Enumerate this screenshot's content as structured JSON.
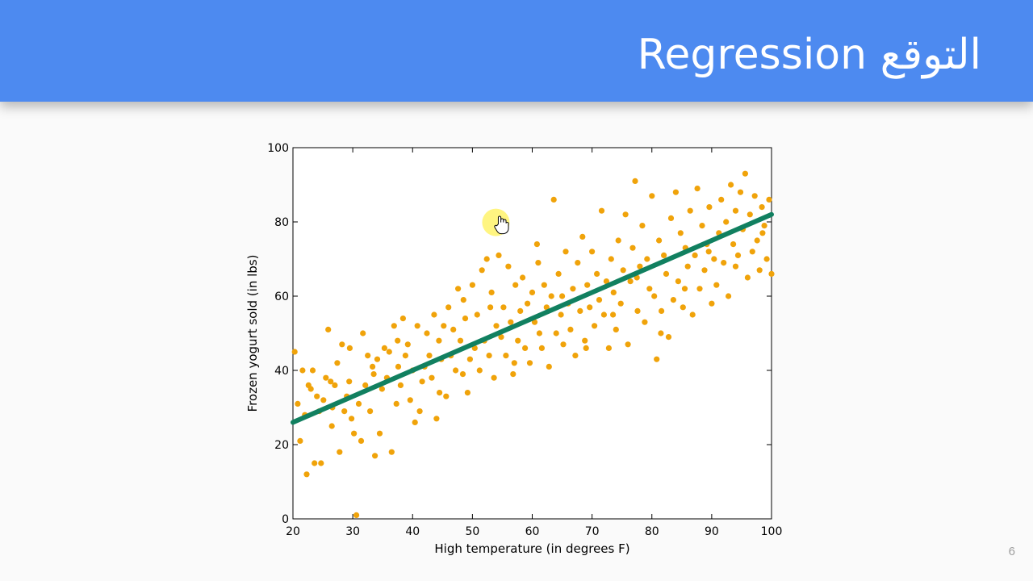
{
  "slide": {
    "title": "Regression التوقع",
    "page_number": "6"
  },
  "colors": {
    "header": "#4d8af0",
    "points": "#f0a30a",
    "line": "#118060",
    "pointer_highlight": "#fff36b"
  },
  "pointer": {
    "icon": "hand-pointer-icon",
    "x": 55,
    "y": 79
  },
  "chart_data": {
    "type": "scatter",
    "title": "",
    "xlabel": "High temperature (in degrees F)",
    "ylabel": "Frozen yogurt sold (in lbs)",
    "xlim": [
      20,
      100
    ],
    "ylim": [
      0,
      100
    ],
    "xticks": [
      20,
      30,
      40,
      50,
      60,
      70,
      80,
      90,
      100
    ],
    "yticks": [
      0,
      20,
      40,
      60,
      80,
      100
    ],
    "grid": false,
    "legend": "none",
    "regression_line": {
      "x": [
        20,
        100
      ],
      "y": [
        26,
        82
      ]
    },
    "points": [
      [
        20.3,
        45
      ],
      [
        20.8,
        31
      ],
      [
        21.2,
        21
      ],
      [
        21.6,
        40
      ],
      [
        22,
        28
      ],
      [
        22.3,
        12
      ],
      [
        22.6,
        36
      ],
      [
        23,
        35
      ],
      [
        23.3,
        40
      ],
      [
        23.6,
        15
      ],
      [
        24,
        33
      ],
      [
        24.4,
        29
      ],
      [
        24.7,
        15
      ],
      [
        25.1,
        32
      ],
      [
        25.5,
        38
      ],
      [
        25.9,
        51
      ],
      [
        26.3,
        37
      ],
      [
        26.6,
        30
      ],
      [
        27,
        36
      ],
      [
        27.4,
        42
      ],
      [
        27.8,
        18
      ],
      [
        28.2,
        47
      ],
      [
        28.6,
        29
      ],
      [
        29,
        33
      ],
      [
        29.4,
        37
      ],
      [
        29.8,
        27
      ],
      [
        30.2,
        23
      ],
      [
        30.6,
        1
      ],
      [
        31,
        31
      ],
      [
        31.4,
        21
      ],
      [
        31.7,
        50
      ],
      [
        32.1,
        36
      ],
      [
        32.5,
        44
      ],
      [
        32.9,
        29
      ],
      [
        33.3,
        41
      ],
      [
        33.7,
        17
      ],
      [
        34.1,
        43
      ],
      [
        34.5,
        23
      ],
      [
        34.9,
        35
      ],
      [
        35.3,
        46
      ],
      [
        35.7,
        38
      ],
      [
        36.1,
        45
      ],
      [
        36.5,
        18
      ],
      [
        36.9,
        52
      ],
      [
        37.3,
        31
      ],
      [
        37.6,
        41
      ],
      [
        38,
        36
      ],
      [
        38.4,
        54
      ],
      [
        38.8,
        44
      ],
      [
        39.2,
        47
      ],
      [
        39.6,
        32
      ],
      [
        40,
        40
      ],
      [
        40.4,
        26
      ],
      [
        40.8,
        52
      ],
      [
        41.2,
        29
      ],
      [
        41.6,
        37
      ],
      [
        42,
        41
      ],
      [
        42.4,
        50
      ],
      [
        42.8,
        44
      ],
      [
        43.2,
        38
      ],
      [
        43.6,
        55
      ],
      [
        44,
        27
      ],
      [
        44.4,
        48
      ],
      [
        44.8,
        43
      ],
      [
        45.2,
        52
      ],
      [
        45.6,
        33
      ],
      [
        46,
        57
      ],
      [
        46.4,
        44
      ],
      [
        46.8,
        51
      ],
      [
        47.2,
        40
      ],
      [
        47.6,
        62
      ],
      [
        48,
        48
      ],
      [
        48.4,
        39
      ],
      [
        48.8,
        54
      ],
      [
        49.2,
        34
      ],
      [
        49.6,
        43
      ],
      [
        50,
        63
      ],
      [
        50.4,
        46
      ],
      [
        50.8,
        55
      ],
      [
        51.2,
        40
      ],
      [
        51.6,
        67
      ],
      [
        52,
        48
      ],
      [
        52.4,
        70
      ],
      [
        52.8,
        44
      ],
      [
        53.2,
        61
      ],
      [
        53.6,
        38
      ],
      [
        54,
        52
      ],
      [
        54.4,
        71
      ],
      [
        54.8,
        49
      ],
      [
        55.2,
        57
      ],
      [
        55.6,
        44
      ],
      [
        56,
        68
      ],
      [
        56.4,
        53
      ],
      [
        56.8,
        39
      ],
      [
        57.2,
        63
      ],
      [
        57.6,
        48
      ],
      [
        58,
        56
      ],
      [
        58.4,
        65
      ],
      [
        58.8,
        46
      ],
      [
        59.2,
        58
      ],
      [
        59.6,
        42
      ],
      [
        60,
        61
      ],
      [
        60.4,
        53
      ],
      [
        60.8,
        74
      ],
      [
        61.2,
        50
      ],
      [
        61.6,
        46
      ],
      [
        62,
        63
      ],
      [
        62.4,
        57
      ],
      [
        62.8,
        41
      ],
      [
        63.2,
        60
      ],
      [
        63.6,
        86
      ],
      [
        64,
        50
      ],
      [
        64.4,
        66
      ],
      [
        64.8,
        55
      ],
      [
        65.2,
        47
      ],
      [
        65.6,
        72
      ],
      [
        66,
        58
      ],
      [
        66.4,
        51
      ],
      [
        66.8,
        62
      ],
      [
        67.2,
        44
      ],
      [
        67.6,
        69
      ],
      [
        68,
        56
      ],
      [
        68.4,
        76
      ],
      [
        68.8,
        48
      ],
      [
        69.2,
        63
      ],
      [
        69.6,
        57
      ],
      [
        70,
        72
      ],
      [
        70.4,
        52
      ],
      [
        70.8,
        66
      ],
      [
        71.2,
        59
      ],
      [
        71.6,
        83
      ],
      [
        72,
        55
      ],
      [
        72.4,
        64
      ],
      [
        72.8,
        46
      ],
      [
        73.2,
        70
      ],
      [
        73.6,
        61
      ],
      [
        74,
        51
      ],
      [
        74.4,
        75
      ],
      [
        74.8,
        58
      ],
      [
        75.2,
        67
      ],
      [
        75.6,
        82
      ],
      [
        76,
        47
      ],
      [
        76.4,
        64
      ],
      [
        76.8,
        73
      ],
      [
        77.2,
        91
      ],
      [
        77.6,
        56
      ],
      [
        78,
        68
      ],
      [
        78.4,
        79
      ],
      [
        78.8,
        53
      ],
      [
        79.2,
        70
      ],
      [
        79.6,
        62
      ],
      [
        80,
        87
      ],
      [
        80.4,
        60
      ],
      [
        80.8,
        43
      ],
      [
        81.2,
        75
      ],
      [
        81.6,
        56
      ],
      [
        82,
        71
      ],
      [
        82.4,
        66
      ],
      [
        82.8,
        49
      ],
      [
        83.2,
        81
      ],
      [
        83.6,
        59
      ],
      [
        84,
        88
      ],
      [
        84.4,
        64
      ],
      [
        84.8,
        77
      ],
      [
        85.2,
        57
      ],
      [
        85.6,
        73
      ],
      [
        86,
        68
      ],
      [
        86.4,
        83
      ],
      [
        86.8,
        55
      ],
      [
        87.2,
        71
      ],
      [
        87.6,
        89
      ],
      [
        88,
        62
      ],
      [
        88.4,
        79
      ],
      [
        88.8,
        67
      ],
      [
        89.2,
        74
      ],
      [
        89.6,
        84
      ],
      [
        90,
        58
      ],
      [
        90.4,
        70
      ],
      [
        90.8,
        63
      ],
      [
        91.2,
        77
      ],
      [
        91.6,
        86
      ],
      [
        92,
        69
      ],
      [
        92.4,
        80
      ],
      [
        92.8,
        60
      ],
      [
        93.2,
        90
      ],
      [
        93.6,
        74
      ],
      [
        94,
        83
      ],
      [
        94.4,
        71
      ],
      [
        94.8,
        88
      ],
      [
        95.2,
        78
      ],
      [
        95.6,
        93
      ],
      [
        96,
        65
      ],
      [
        96.4,
        82
      ],
      [
        96.8,
        72
      ],
      [
        97.2,
        87
      ],
      [
        97.6,
        75
      ],
      [
        98,
        67
      ],
      [
        98.4,
        84
      ],
      [
        98.8,
        79
      ],
      [
        99.2,
        70
      ],
      [
        99.6,
        86
      ],
      [
        100,
        66
      ],
      [
        26.5,
        25
      ],
      [
        29.5,
        46
      ],
      [
        33.5,
        39
      ],
      [
        37.5,
        48
      ],
      [
        44.5,
        34
      ],
      [
        48.5,
        59
      ],
      [
        53,
        57
      ],
      [
        57,
        42
      ],
      [
        61,
        69
      ],
      [
        65,
        60
      ],
      [
        69,
        46
      ],
      [
        73.5,
        55
      ],
      [
        77.5,
        65
      ],
      [
        81.5,
        50
      ],
      [
        85.5,
        62
      ],
      [
        89.5,
        72
      ],
      [
        94,
        68
      ],
      [
        98.5,
        77
      ]
    ]
  }
}
